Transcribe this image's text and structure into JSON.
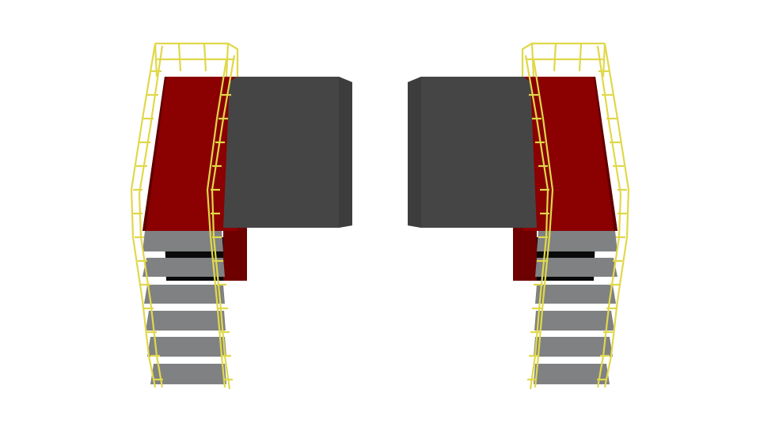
{
  "scene": {
    "description_visible_text": "",
    "colors": {
      "background": "#ffffff",
      "platform_red": "#8b0000",
      "platform_red_dark": "#5e0000",
      "deck_gray": "#454545",
      "deck_gray_edge": "#3a3a3a",
      "step_gray": "#7f8183",
      "railing_yellow": "#e0d84a",
      "railing_yellow_dark": "#a89f1c",
      "shadow_black": "#0a0a0a"
    },
    "objects": {
      "left_structure": {
        "steps_count": 6,
        "icon": "stair-platform-icon"
      },
      "right_structure": {
        "steps_count": 6,
        "icon": "stair-platform-icon"
      }
    }
  }
}
